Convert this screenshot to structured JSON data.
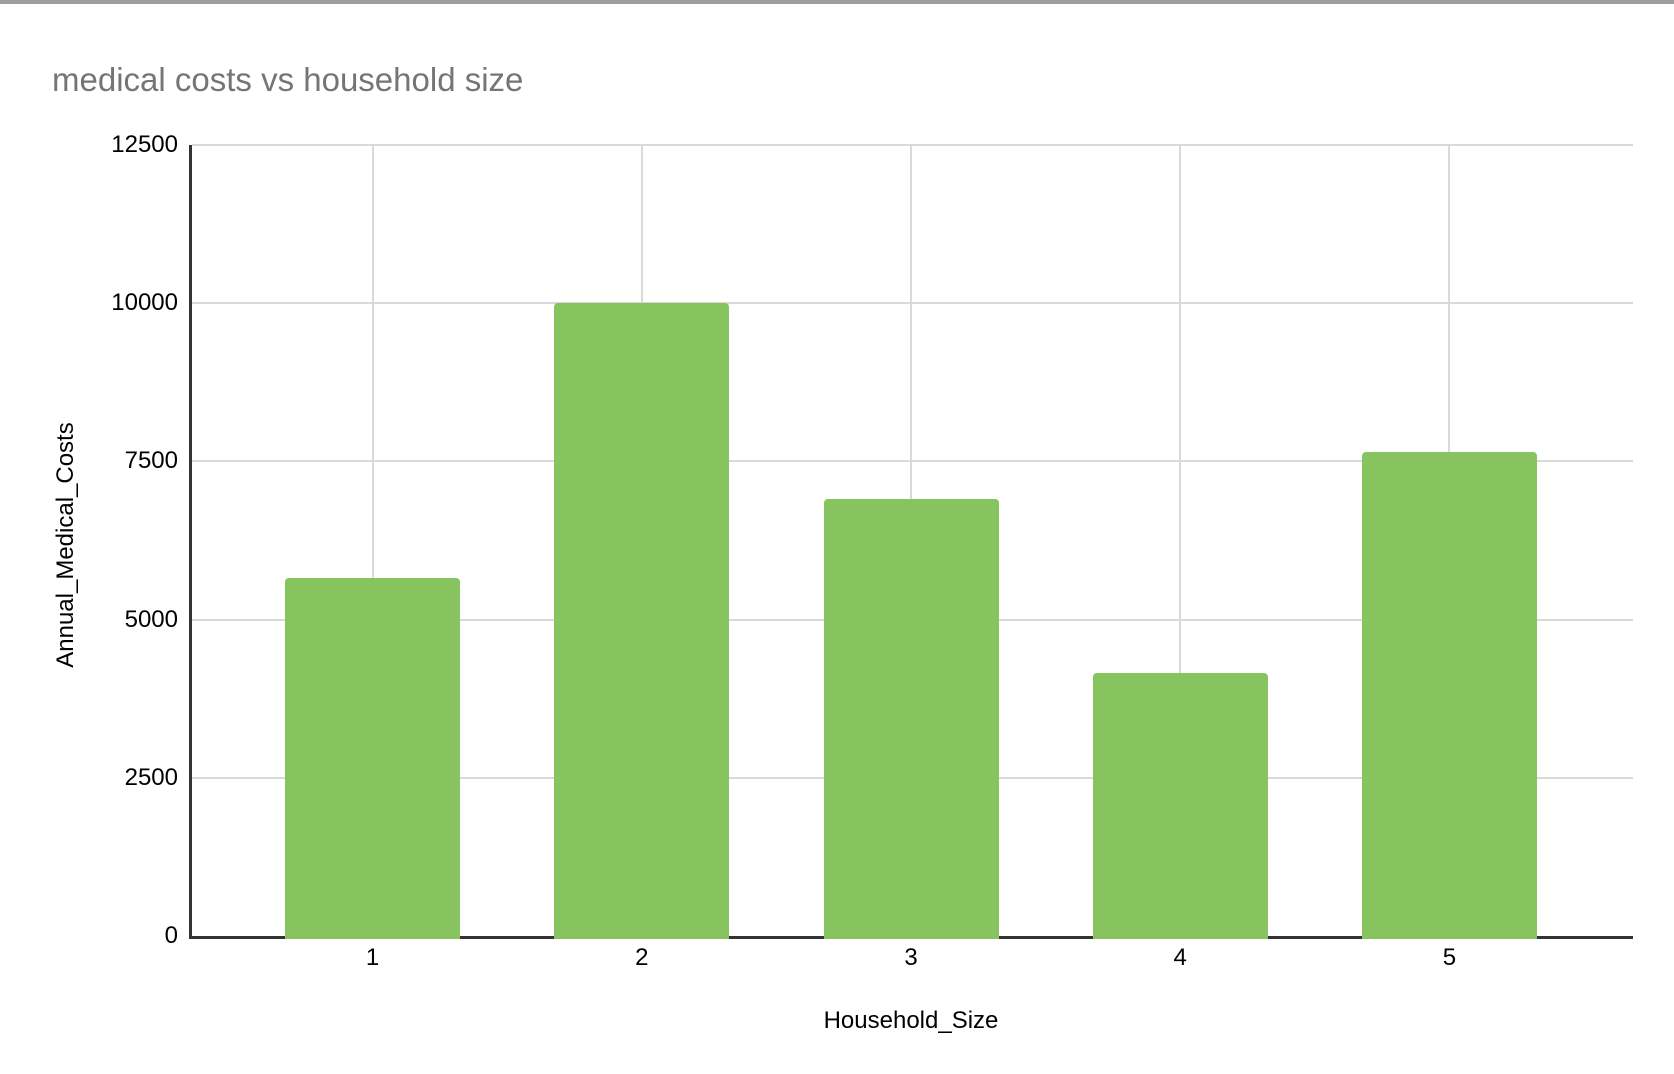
{
  "chart_data": {
    "type": "bar",
    "title": "medical costs vs household size",
    "xlabel": "Household_Size",
    "ylabel": "Annual_Medical_Costs",
    "categories": [
      "1",
      "2",
      "3",
      "4",
      "5"
    ],
    "values": [
      5650,
      10000,
      6900,
      4150,
      7650
    ],
    "ylim": [
      0,
      12500
    ],
    "y_ticks": [
      0,
      2500,
      5000,
      7500,
      10000,
      12500
    ],
    "grid": true,
    "legend": "none",
    "bar_color": "#87c45f"
  },
  "colors": {
    "bar": "#87c45f",
    "gridline": "#d9d9d9",
    "axis": "#333333",
    "title_text": "#757575",
    "tick_text": "#000000",
    "top_strip": "#9e9e9e"
  }
}
